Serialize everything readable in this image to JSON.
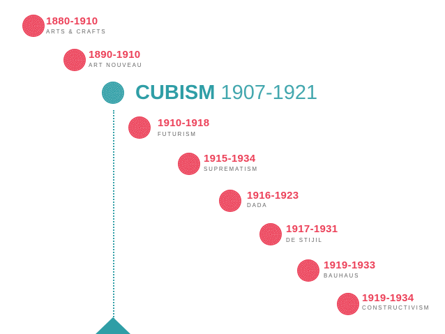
{
  "colors": {
    "accent_red": "#ec4159",
    "accent_teal": "#2f9ea6",
    "text_gray": "#666666"
  },
  "feature": {
    "name": "CUBISM",
    "years": "1907-1921"
  },
  "movements": [
    {
      "years": "1880-1910",
      "name": "ARTS & CRAFTS"
    },
    {
      "years": "1890-1910",
      "name": "ART NOUVEAU"
    },
    {
      "years": "1910-1918",
      "name": "FUTURISM"
    },
    {
      "years": "1915-1934",
      "name": "SUPREMATISM"
    },
    {
      "years": "1916-1923",
      "name": "DADA"
    },
    {
      "years": "1917-1931",
      "name": "DE STIJIL"
    },
    {
      "years": "1919-1933",
      "name": "BAUHAUS"
    },
    {
      "years": "1919-1934",
      "name": "CONSTRUCTIVISM"
    }
  ]
}
